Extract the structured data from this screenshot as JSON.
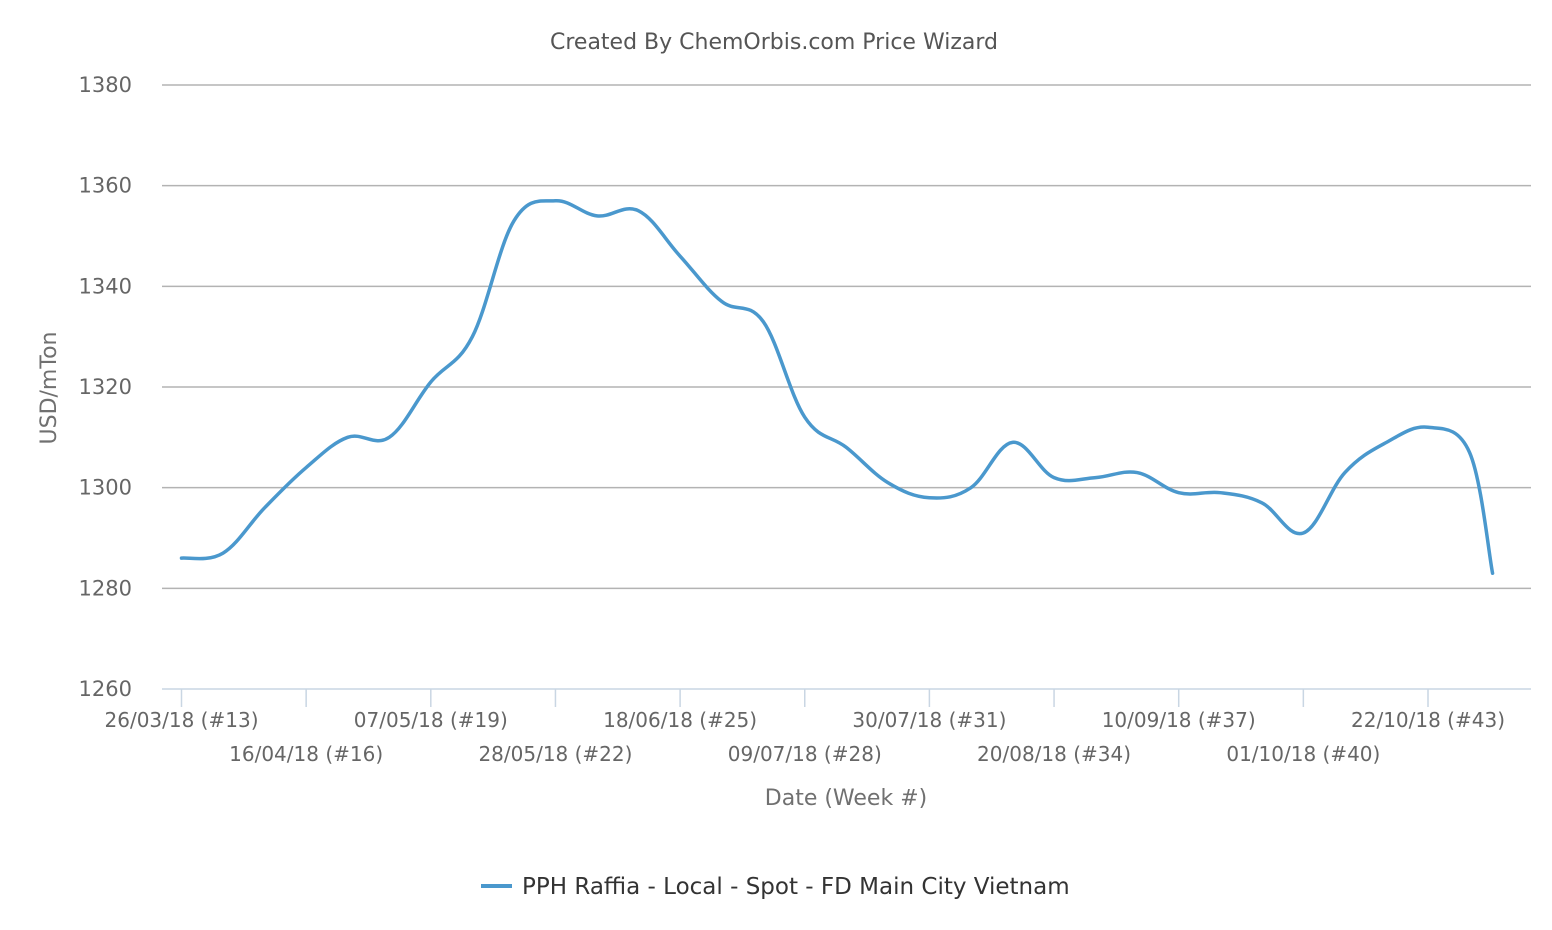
{
  "chart_data": {
    "type": "line",
    "title": "Created By ChemOrbis.com Price Wizard",
    "xlabel": "Date (Week #)",
    "ylabel": "USD/mTon",
    "ylim": [
      1260,
      1380
    ],
    "yticks": [
      1260,
      1280,
      1300,
      1320,
      1340,
      1360,
      1380
    ],
    "grid": true,
    "legend_position": "bottom-center",
    "x": [
      "#13",
      "#14",
      "#15",
      "#16",
      "#17",
      "#18",
      "#19",
      "#20",
      "#21",
      "#22",
      "#23",
      "#24",
      "#25",
      "#26",
      "#27",
      "#28",
      "#29",
      "#30",
      "#31",
      "#32",
      "#33",
      "#34",
      "#35",
      "#36",
      "#37",
      "#38",
      "#39",
      "#40",
      "#41",
      "#42",
      "#43",
      "#44"
    ],
    "xtick_labels": [
      "26/03/18 (#13)",
      "16/04/18 (#16)",
      "07/05/18 (#19)",
      "28/05/18 (#22)",
      "18/06/18 (#25)",
      "09/07/18 (#28)",
      "30/07/18 (#31)",
      "20/08/18 (#34)",
      "10/09/18 (#37)",
      "01/10/18 (#40)",
      "22/10/18 (#43)"
    ],
    "xtick_weeks": [
      13,
      16,
      19,
      22,
      25,
      28,
      31,
      34,
      37,
      40,
      43
    ],
    "series": [
      {
        "name": "PPH Raffia - Local - Spot - FD Main City Vietnam",
        "color": "#4a98cd",
        "weeks": [
          13,
          14,
          15,
          16,
          17,
          18,
          19,
          20,
          21,
          22,
          23,
          24,
          25,
          26,
          27,
          28,
          29,
          30,
          31,
          32,
          33,
          34,
          35,
          36,
          37,
          38,
          39,
          40,
          41,
          42,
          43,
          44
        ],
        "values": [
          1286,
          1287,
          1296,
          1304,
          1310,
          1310,
          1321,
          1330,
          1353,
          1357,
          1354,
          1355,
          1346,
          1337,
          1333,
          1314,
          1308,
          1301,
          1298,
          1300,
          1309,
          1302,
          1302,
          1303,
          1299,
          1299,
          1297,
          1291,
          1303,
          1309,
          1312,
          1307
        ]
      }
    ],
    "last_point": 1283
  }
}
